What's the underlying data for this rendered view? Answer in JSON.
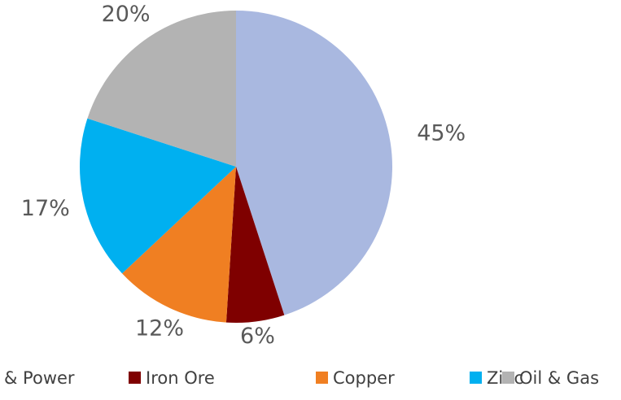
{
  "chart_data": {
    "type": "pie",
    "categories": [
      "& Power",
      "Iron Ore",
      "Copper",
      "Zinc",
      "Oil & Gas"
    ],
    "values": [
      45,
      6,
      12,
      17,
      20
    ],
    "value_labels": [
      "45%",
      "6%",
      "12%",
      "17%",
      "20%"
    ],
    "colors": [
      "#a9b8e0",
      "#7f0000",
      "#f07f22",
      "#00b0f0",
      "#b3b3b3"
    ],
    "legend": "bottom"
  }
}
